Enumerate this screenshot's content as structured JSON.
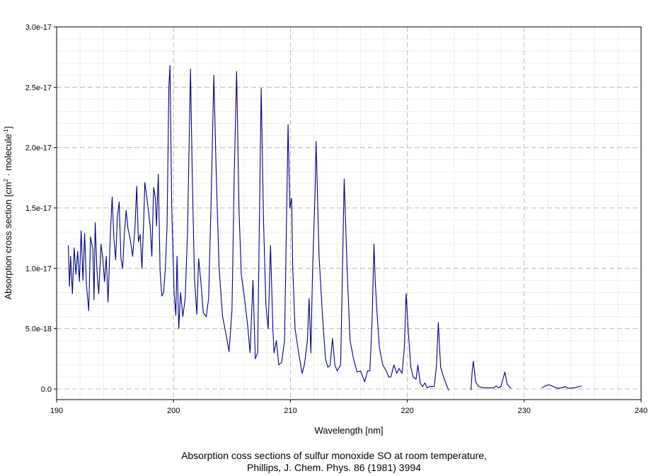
{
  "chart_data": {
    "type": "line",
    "title": "",
    "xlabel": "Wavelength [nm]",
    "ylabel": {
      "main": "Absorption cross section [cm",
      "sup1": "2",
      "mid": " · molecule",
      "sup2": "-1",
      "end": "]"
    },
    "xlim": [
      190,
      240
    ],
    "ylim": [
      -7e-19,
      3e-17
    ],
    "x_ticks": [
      {
        "value": 190,
        "label": "190"
      },
      {
        "value": 200,
        "label": "200"
      },
      {
        "value": 210,
        "label": "210"
      },
      {
        "value": 220,
        "label": "220"
      },
      {
        "value": 230,
        "label": "230"
      },
      {
        "value": 240,
        "label": "240"
      }
    ],
    "y_ticks": [
      {
        "value": 0,
        "label": "0.0"
      },
      {
        "value": 5e-18,
        "label": "5.0e-18"
      },
      {
        "value": 1e-17,
        "label": "1.0e-17"
      },
      {
        "value": 1.5e-17,
        "label": "1.5e-17"
      },
      {
        "value": 2e-17,
        "label": "2.0e-17"
      },
      {
        "value": 2.5e-17,
        "label": "2.5e-17"
      },
      {
        "value": 3e-17,
        "label": "3.0e-17"
      }
    ],
    "grid": true,
    "line_color": "#000080",
    "series": [
      {
        "segments": [
          [
            [
              191.0,
              1.19e-17
            ],
            [
              191.1,
              8.5e-18
            ],
            [
              191.2,
              1.1e-17
            ],
            [
              191.35,
              7.9e-18
            ],
            [
              191.5,
              1.17e-17
            ],
            [
              191.65,
              9.5e-18
            ],
            [
              191.8,
              1.14e-17
            ],
            [
              191.95,
              8.9e-18
            ],
            [
              192.1,
              1.31e-17
            ],
            [
              192.25,
              9e-18
            ],
            [
              192.4,
              1.29e-17
            ],
            [
              192.55,
              8.7e-18
            ],
            [
              192.75,
              6.5e-18
            ],
            [
              192.9,
              1.26e-17
            ],
            [
              193.1,
              1.16e-17
            ],
            [
              193.2,
              7.4e-18
            ],
            [
              193.3,
              1.38e-17
            ],
            [
              193.45,
              9.8e-18
            ],
            [
              193.6,
              7.9e-18
            ],
            [
              193.8,
              1.2e-17
            ],
            [
              193.95,
              1.08e-17
            ],
            [
              194.1,
              8.9e-18
            ],
            [
              194.25,
              1.1e-17
            ],
            [
              194.4,
              7.2e-18
            ],
            [
              194.6,
              1.29e-17
            ],
            [
              194.75,
              1.59e-17
            ],
            [
              194.9,
              1.25e-17
            ],
            [
              195.05,
              1.07e-17
            ],
            [
              195.2,
              1.43e-17
            ],
            [
              195.35,
              1.55e-17
            ],
            [
              195.5,
              1.08e-17
            ],
            [
              195.65,
              1e-17
            ],
            [
              195.8,
              1.29e-17
            ],
            [
              195.95,
              1.48e-17
            ],
            [
              196.1,
              1.33e-17
            ],
            [
              196.3,
              1.24e-17
            ],
            [
              196.5,
              1.1e-17
            ],
            [
              196.7,
              1.33e-17
            ],
            [
              196.85,
              1.68e-17
            ],
            [
              197.0,
              1.22e-17
            ],
            [
              197.15,
              1.28e-17
            ],
            [
              197.3,
              1e-17
            ],
            [
              197.45,
              1.4e-17
            ],
            [
              197.55,
              1.71e-17
            ],
            [
              197.7,
              1.6e-17
            ],
            [
              197.85,
              1.48e-17
            ],
            [
              198.0,
              1.35e-17
            ],
            [
              198.15,
              1.1e-17
            ],
            [
              198.3,
              1.67e-17
            ],
            [
              198.45,
              1.58e-17
            ],
            [
              198.55,
              1.35e-17
            ],
            [
              198.7,
              1.78e-17
            ],
            [
              198.85,
              9.8e-18
            ],
            [
              199.0,
              7.7e-18
            ],
            [
              199.15,
              8e-18
            ],
            [
              199.3,
              9.9e-18
            ],
            [
              199.45,
              1.35e-17
            ],
            [
              199.6,
              2.5e-17
            ],
            [
              199.7,
              2.68e-17
            ],
            [
              199.85,
              1.5e-17
            ],
            [
              200.05,
              8e-18
            ],
            [
              200.2,
              6.1e-18
            ],
            [
              200.3,
              1.1e-17
            ],
            [
              200.45,
              5e-18
            ],
            [
              200.6,
              8e-18
            ],
            [
              200.8,
              6e-18
            ],
            [
              201.0,
              7.5e-18
            ],
            [
              201.2,
              1.3e-17
            ],
            [
              201.45,
              2.65e-17
            ],
            [
              201.6,
              1.8e-17
            ],
            [
              201.8,
              9e-18
            ],
            [
              202.0,
              6.2e-18
            ],
            [
              202.15,
              1.08e-17
            ],
            [
              202.35,
              8.8e-18
            ],
            [
              202.55,
              6.3e-18
            ],
            [
              202.8,
              6e-18
            ],
            [
              203.0,
              7.5e-18
            ],
            [
              203.2,
              1.5e-17
            ],
            [
              203.45,
              2.6e-17
            ],
            [
              203.65,
              1.8e-17
            ],
            [
              203.9,
              1e-17
            ],
            [
              204.2,
              6e-18
            ],
            [
              204.5,
              4.5e-18
            ],
            [
              204.75,
              3.1e-18
            ],
            [
              205.0,
              6.5e-18
            ],
            [
              205.2,
              1.8e-17
            ],
            [
              205.4,
              2.63e-17
            ],
            [
              205.6,
              1.5e-17
            ],
            [
              205.8,
              9.5e-18
            ],
            [
              206.1,
              7.3e-18
            ],
            [
              206.35,
              5.2e-18
            ],
            [
              206.55,
              3e-18
            ],
            [
              206.8,
              9e-18
            ],
            [
              207.0,
              2.5e-18
            ],
            [
              207.2,
              3e-18
            ],
            [
              207.5,
              2.49e-17
            ],
            [
              207.7,
              1.4e-17
            ],
            [
              207.9,
              7e-18
            ],
            [
              208.1,
              5e-18
            ],
            [
              208.3,
              1.19e-17
            ],
            [
              208.5,
              5e-18
            ],
            [
              208.6,
              3e-18
            ],
            [
              208.8,
              4e-18
            ],
            [
              209.0,
              2e-18
            ],
            [
              209.25,
              2.2e-18
            ],
            [
              209.5,
              4e-18
            ],
            [
              209.8,
              2.19e-17
            ],
            [
              209.95,
              1.5e-17
            ],
            [
              210.1,
              1.58e-17
            ],
            [
              210.2,
              1e-17
            ],
            [
              210.4,
              5e-18
            ],
            [
              210.7,
              3e-18
            ],
            [
              211.0,
              1.3e-18
            ],
            [
              211.2,
              2e-18
            ],
            [
              211.45,
              4e-18
            ],
            [
              211.6,
              7.5e-18
            ],
            [
              211.75,
              3e-18
            ],
            [
              211.9,
              1e-17
            ],
            [
              212.1,
              1.6e-17
            ],
            [
              212.2,
              2.05e-17
            ],
            [
              212.45,
              1.1e-17
            ],
            [
              212.75,
              6e-18
            ],
            [
              213.0,
              2.5e-18
            ],
            [
              213.2,
              1.8e-18
            ],
            [
              213.4,
              2e-18
            ],
            [
              213.6,
              4.2e-18
            ],
            [
              213.8,
              2e-18
            ],
            [
              214.0,
              1.5e-18
            ],
            [
              214.3,
              2e-18
            ],
            [
              214.6,
              1.74e-17
            ],
            [
              214.85,
              1e-17
            ],
            [
              215.1,
              4e-18
            ],
            [
              215.4,
              2.5e-18
            ],
            [
              215.7,
              1.4e-18
            ],
            [
              216.0,
              1.5e-18
            ],
            [
              216.35,
              6e-19
            ],
            [
              216.6,
              1.5e-18
            ],
            [
              216.8,
              1.5e-18
            ],
            [
              217.0,
              6e-18
            ],
            [
              217.15,
              1.2e-17
            ],
            [
              217.25,
              9e-18
            ],
            [
              217.4,
              6.5e-18
            ],
            [
              217.6,
              3.5e-18
            ],
            [
              217.9,
              2e-18
            ],
            [
              218.2,
              1.5e-18
            ],
            [
              218.4,
              1e-18
            ],
            [
              218.6,
              1e-18
            ],
            [
              218.85,
              2e-18
            ],
            [
              219.1,
              1.3e-18
            ],
            [
              219.3,
              1.7e-18
            ],
            [
              219.55,
              1.3e-18
            ],
            [
              219.75,
              3.5e-18
            ],
            [
              219.9,
              7.9e-18
            ],
            [
              220.1,
              4.5e-18
            ],
            [
              220.3,
              1.8e-18
            ],
            [
              220.5,
              1e-18
            ],
            [
              220.75,
              8e-19
            ],
            [
              220.9,
              2e-18
            ],
            [
              221.1,
              5e-19
            ],
            [
              221.3,
              2e-19
            ],
            [
              221.5,
              5e-19
            ],
            [
              221.7,
              1e-19
            ],
            [
              221.9,
              2e-19
            ],
            [
              222.3,
              2e-19
            ],
            [
              222.5,
              2e-18
            ],
            [
              222.65,
              5.5e-18
            ],
            [
              222.85,
              1.8e-18
            ],
            [
              223.1,
              1e-18
            ],
            [
              223.4,
              2e-19
            ],
            [
              223.55,
              -1e-19
            ]
          ],
          [
            [
              225.45,
              -1e-19
            ],
            [
              225.55,
              1.5e-18
            ],
            [
              225.65,
              2.3e-18
            ],
            [
              225.85,
              6e-19
            ],
            [
              226.1,
              2e-19
            ],
            [
              226.5,
              1e-19
            ],
            [
              227.0,
              1e-19
            ],
            [
              227.4,
              1e-19
            ],
            [
              227.6,
              2.5e-19
            ],
            [
              227.8,
              1e-19
            ],
            [
              228.0,
              2e-19
            ],
            [
              228.2,
              9e-19
            ],
            [
              228.35,
              1.4e-18
            ],
            [
              228.55,
              4e-19
            ],
            [
              228.8,
              1e-19
            ],
            [
              228.9,
              1e-19
            ]
          ],
          [
            [
              231.5,
              1e-19
            ],
            [
              231.8,
              2.5e-19
            ],
            [
              232.1,
              3.5e-19
            ],
            [
              232.4,
              2.5e-19
            ],
            [
              232.7,
              1e-19
            ],
            [
              232.9,
              5e-20
            ],
            [
              233.2,
              1e-19
            ],
            [
              233.5,
              2e-19
            ],
            [
              233.8,
              5e-20
            ],
            [
              234.2,
              1e-19
            ],
            [
              234.5,
              1.5e-19
            ],
            [
              234.9,
              2.5e-19
            ]
          ]
        ]
      }
    ]
  },
  "caption": {
    "line1": "Absorption coss sections of sulfur monoxide SO at room temperature,",
    "line2": "Phillips, J. Chem. Phys. 86 (1981) 3994"
  }
}
